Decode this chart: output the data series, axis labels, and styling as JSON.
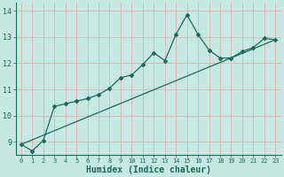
{
  "xlabel": "Humidex (Indice chaleur)",
  "background_color": "#c5e8e0",
  "grid_color": "#ddb8b8",
  "line_color": "#1a6b5a",
  "x_values": [
    0,
    1,
    2,
    3,
    4,
    5,
    6,
    7,
    8,
    9,
    10,
    11,
    12,
    13,
    14,
    15,
    16,
    17,
    18,
    19,
    20,
    21,
    22,
    23
  ],
  "y_curve": [
    8.9,
    8.65,
    9.05,
    10.35,
    10.45,
    10.55,
    10.65,
    10.8,
    11.05,
    11.45,
    11.55,
    11.95,
    12.4,
    12.1,
    13.1,
    13.85,
    13.1,
    12.5,
    12.2,
    12.2,
    12.45,
    12.6,
    12.95,
    12.9
  ],
  "y_linear_start": 8.9,
  "y_linear_end": 12.9,
  "ylim": [
    8.5,
    14.3
  ],
  "yticks": [
    9,
    10,
    11,
    12,
    13,
    14
  ],
  "xlim": [
    -0.5,
    23.5
  ],
  "xticks": [
    0,
    1,
    2,
    3,
    4,
    5,
    6,
    7,
    8,
    9,
    10,
    11,
    12,
    13,
    14,
    15,
    16,
    17,
    18,
    19,
    20,
    21,
    22,
    23
  ]
}
